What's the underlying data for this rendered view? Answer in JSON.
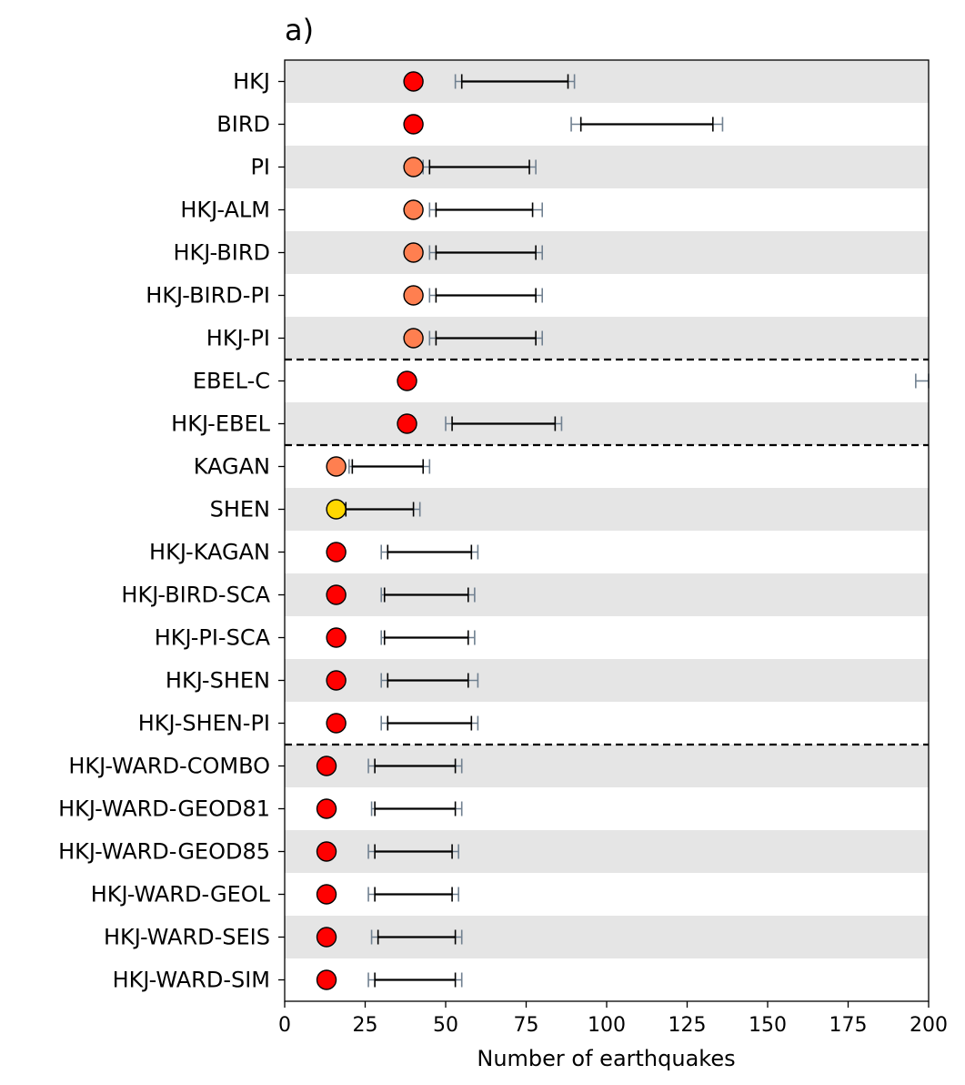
{
  "chart_data": {
    "type": "errorbar",
    "title": "a)",
    "xlabel": "Number of earthquakes",
    "xlim": [
      0,
      200
    ],
    "xticks": [
      0,
      25,
      50,
      75,
      100,
      125,
      150,
      175,
      200
    ],
    "row_shading": "alternating grey/white bands",
    "group_separators_after": [
      "HKJ-PI",
      "HKJ-EBEL",
      "HKJ-SHEN-PI"
    ],
    "colors": {
      "red": "#ff0000",
      "orange": "#ff7f50",
      "yellow": "#ffd700",
      "inner_range": "#000000",
      "outer_range": "#708090",
      "band": "#e5e5e5"
    },
    "series": [
      {
        "name": "HKJ",
        "observed": 40,
        "color": "red",
        "inner": [
          55,
          88
        ],
        "outer": [
          53,
          90
        ]
      },
      {
        "name": "BIRD",
        "observed": 40,
        "color": "red",
        "inner": [
          92,
          133
        ],
        "outer": [
          89,
          136
        ]
      },
      {
        "name": "PI",
        "observed": 40,
        "color": "orange",
        "inner": [
          45,
          76
        ],
        "outer": [
          43,
          78
        ]
      },
      {
        "name": "HKJ-ALM",
        "observed": 40,
        "color": "orange",
        "inner": [
          47,
          77
        ],
        "outer": [
          45,
          80
        ]
      },
      {
        "name": "HKJ-BIRD",
        "observed": 40,
        "color": "orange",
        "inner": [
          47,
          78
        ],
        "outer": [
          45,
          80
        ]
      },
      {
        "name": "HKJ-BIRD-PI",
        "observed": 40,
        "color": "orange",
        "inner": [
          47,
          78
        ],
        "outer": [
          45,
          80
        ]
      },
      {
        "name": "HKJ-PI",
        "observed": 40,
        "color": "orange",
        "inner": [
          47,
          78
        ],
        "outer": [
          45,
          80
        ]
      },
      {
        "name": "EBEL-C",
        "observed": 38,
        "color": "red",
        "inner": null,
        "outer": [
          196,
          200
        ]
      },
      {
        "name": "HKJ-EBEL",
        "observed": 38,
        "color": "red",
        "inner": [
          52,
          84
        ],
        "outer": [
          50,
          86
        ]
      },
      {
        "name": "KAGAN",
        "observed": 16,
        "color": "orange",
        "inner": [
          21,
          43
        ],
        "outer": [
          20,
          45
        ]
      },
      {
        "name": "SHEN",
        "observed": 16,
        "color": "yellow",
        "inner": [
          19,
          40
        ],
        "outer": [
          18,
          42
        ]
      },
      {
        "name": "HKJ-KAGAN",
        "observed": 16,
        "color": "red",
        "inner": [
          32,
          58
        ],
        "outer": [
          30,
          60
        ]
      },
      {
        "name": "HKJ-BIRD-SCA",
        "observed": 16,
        "color": "red",
        "inner": [
          31,
          57
        ],
        "outer": [
          30,
          59
        ]
      },
      {
        "name": "HKJ-PI-SCA",
        "observed": 16,
        "color": "red",
        "inner": [
          31,
          57
        ],
        "outer": [
          30,
          59
        ]
      },
      {
        "name": "HKJ-SHEN",
        "observed": 16,
        "color": "red",
        "inner": [
          32,
          57
        ],
        "outer": [
          30,
          60
        ]
      },
      {
        "name": "HKJ-SHEN-PI",
        "observed": 16,
        "color": "red",
        "inner": [
          32,
          58
        ],
        "outer": [
          30,
          60
        ]
      },
      {
        "name": "HKJ-WARD-COMBO",
        "observed": 13,
        "color": "red",
        "inner": [
          28,
          53
        ],
        "outer": [
          26,
          55
        ]
      },
      {
        "name": "HKJ-WARD-GEOD81",
        "observed": 13,
        "color": "red",
        "inner": [
          28,
          53
        ],
        "outer": [
          27,
          55
        ]
      },
      {
        "name": "HKJ-WARD-GEOD85",
        "observed": 13,
        "color": "red",
        "inner": [
          28,
          52
        ],
        "outer": [
          26,
          54
        ]
      },
      {
        "name": "HKJ-WARD-GEOL",
        "observed": 13,
        "color": "red",
        "inner": [
          28,
          52
        ],
        "outer": [
          26,
          54
        ]
      },
      {
        "name": "HKJ-WARD-SEIS",
        "observed": 13,
        "color": "red",
        "inner": [
          29,
          53
        ],
        "outer": [
          27,
          55
        ]
      },
      {
        "name": "HKJ-WARD-SIM",
        "observed": 13,
        "color": "red",
        "inner": [
          28,
          53
        ],
        "outer": [
          26,
          55
        ]
      }
    ]
  }
}
